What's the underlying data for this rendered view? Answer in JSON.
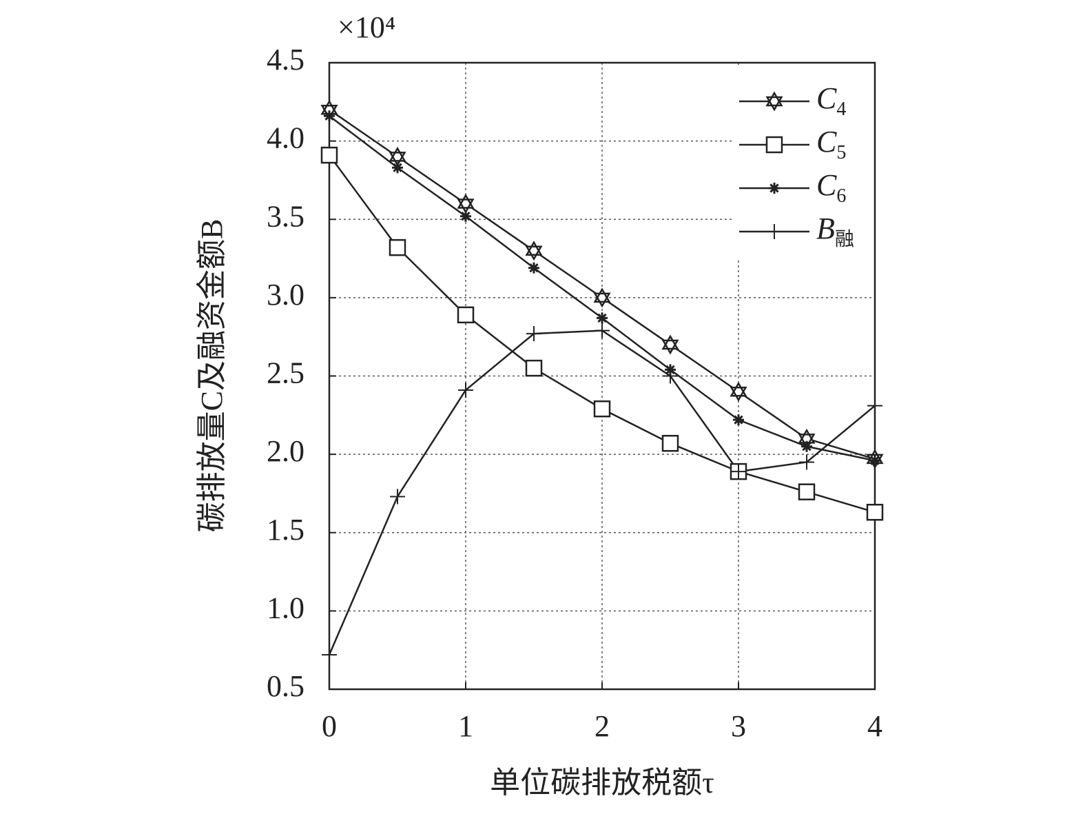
{
  "chart_data": {
    "type": "line",
    "multiplier": "×10⁴",
    "xlabel": "单位碳排放税额τ",
    "ylabel": "碳排放量C及融资金额B",
    "x": [
      0,
      0.5,
      1,
      1.5,
      2,
      2.5,
      3,
      3.5,
      4
    ],
    "series": [
      {
        "name": "C4",
        "color": "#222222",
        "marker": "hexagram",
        "values": [
          4.2,
          3.9,
          3.6,
          3.3,
          3.0,
          2.7,
          2.4,
          2.1,
          1.97
        ]
      },
      {
        "name": "C5",
        "color": "#222222",
        "marker": "square",
        "values": [
          3.91,
          3.32,
          2.89,
          2.55,
          2.29,
          2.07,
          1.89,
          1.76,
          1.63
        ]
      },
      {
        "name": "C6",
        "color": "#222222",
        "marker": "asterisk",
        "values": [
          4.16,
          3.83,
          3.52,
          3.19,
          2.87,
          2.54,
          2.22,
          2.05,
          1.96
        ]
      },
      {
        "name": "B融",
        "color": "#222222",
        "marker": "plus",
        "values": [
          0.72,
          1.73,
          2.41,
          2.77,
          2.79,
          2.5,
          1.89,
          1.95,
          2.31
        ]
      }
    ],
    "xlim": [
      0,
      4
    ],
    "xticks": [
      0,
      1,
      2,
      3,
      4
    ],
    "ylim": [
      0.5,
      4.5
    ],
    "yticks": [
      0.5,
      {
        "value": 1,
        "label": "1.0"
      },
      1.5,
      {
        "value": 2,
        "label": "2.0"
      },
      2.5,
      {
        "value": 3,
        "label": "3.0"
      },
      3.5,
      {
        "value": 4,
        "label": "4.0"
      },
      4.5
    ],
    "grid": true,
    "legend": "upper right"
  }
}
